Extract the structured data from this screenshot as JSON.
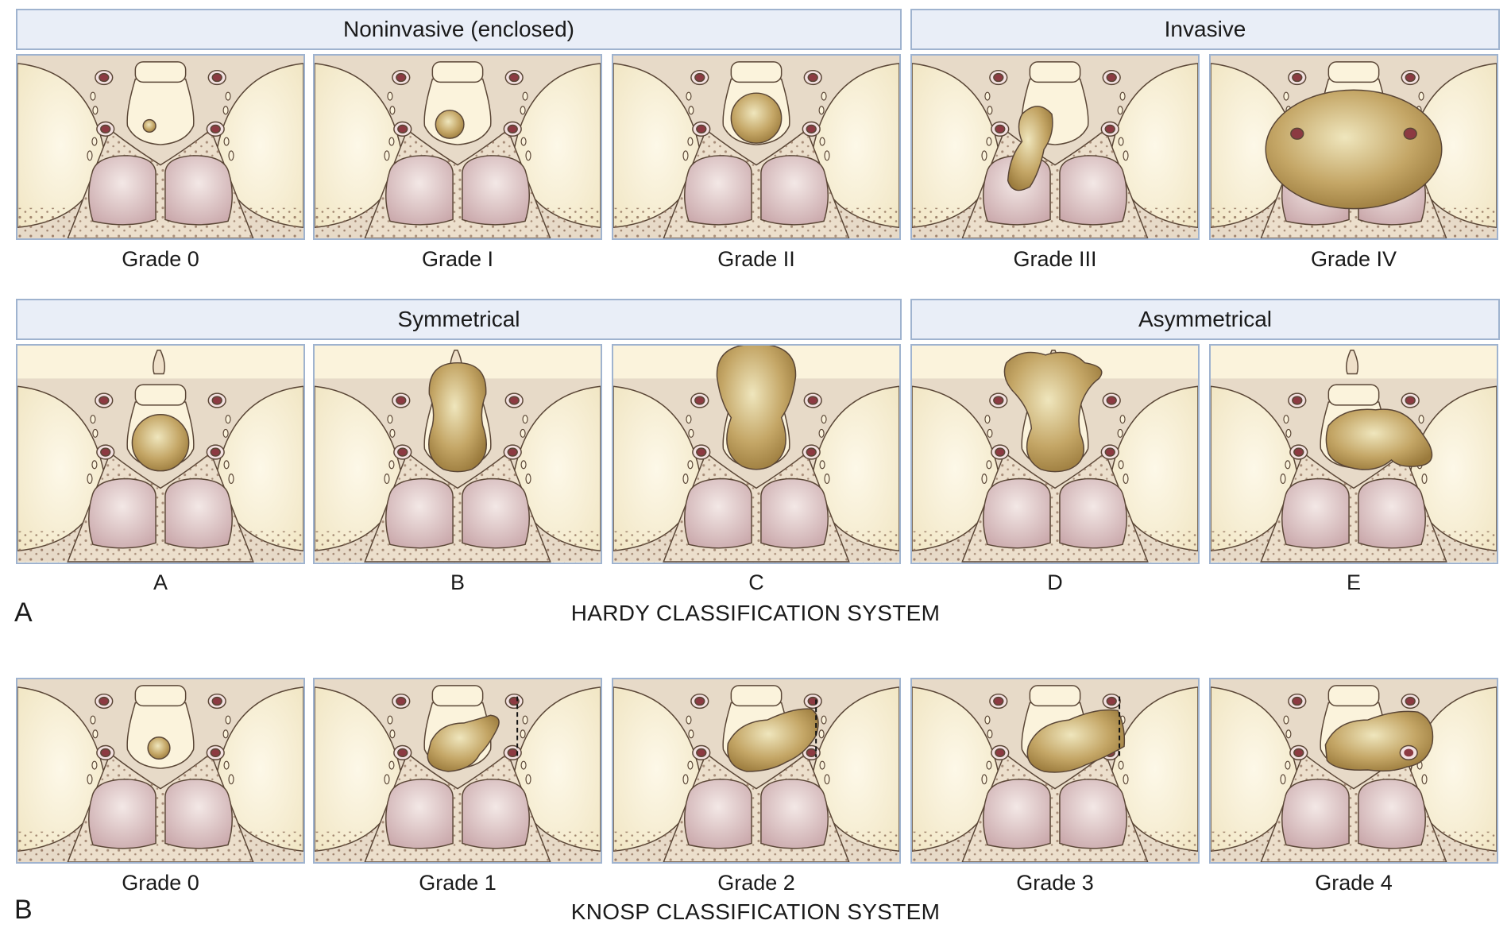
{
  "hardy": {
    "headers": {
      "noninvasive": "Noninvasive (enclosed)",
      "invasive": "Invasive",
      "symmetrical": "Symmetrical",
      "asymmetrical": "Asymmetrical"
    },
    "grade_labels": [
      "Grade 0",
      "Grade I",
      "Grade II",
      "Grade III",
      "Grade IV"
    ],
    "extension_labels": [
      "A",
      "B",
      "C",
      "D",
      "E"
    ],
    "panel_letter": "A",
    "title": "HARDY CLASSIFICATION SYSTEM"
  },
  "knosp": {
    "grade_labels": [
      "Grade 0",
      "Grade 1",
      "Grade 2",
      "Grade 3",
      "Grade 4"
    ],
    "panel_letter": "B",
    "title": "KNOSP CLASSIFICATION SYSTEM"
  },
  "colors": {
    "header_fill": "#e9eef7",
    "header_border": "#9fb3cf",
    "tumor": "#b8995a",
    "bone": "#e8dccb",
    "sinus": "#d9bcbf"
  }
}
